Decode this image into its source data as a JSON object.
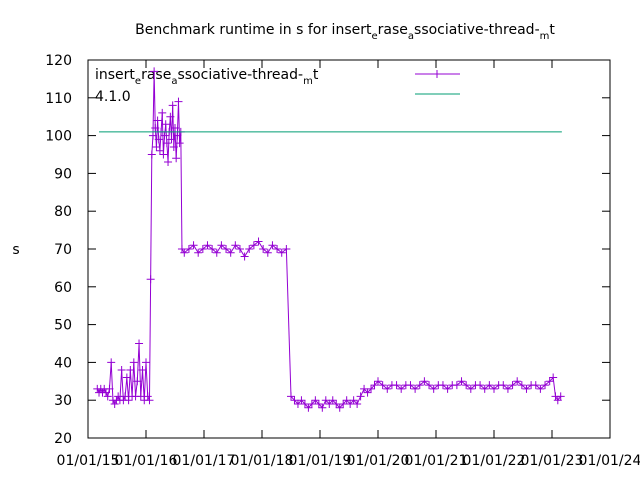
{
  "chart_data": {
    "type": "line",
    "title": [
      "Benchmark runtime in s for insert",
      "e",
      "rase",
      "a",
      "ssociative-thread-",
      "m",
      "t"
    ],
    "label_parts": [
      "insert",
      "e",
      "rase",
      "a",
      "ssociative-thread-",
      "m",
      "t"
    ],
    "version_label": "4.1.0",
    "ylabel": "s",
    "xlim": [
      2015,
      2024
    ],
    "xticks": [
      {
        "value": 2015,
        "label": "01/01/15"
      },
      {
        "value": 2016,
        "label": "01/01/16"
      },
      {
        "value": 2017,
        "label": "01/01/17"
      },
      {
        "value": 2018,
        "label": "01/01/18"
      },
      {
        "value": 2019,
        "label": "01/01/19"
      },
      {
        "value": 2020,
        "label": "01/01/20"
      },
      {
        "value": 2021,
        "label": "01/01/21"
      },
      {
        "value": 2022,
        "label": "01/01/22"
      },
      {
        "value": 2023,
        "label": "01/01/23"
      },
      {
        "value": 2024,
        "label": "01/01/24"
      }
    ],
    "ylim": [
      20,
      120
    ],
    "yticks": [
      20,
      30,
      40,
      50,
      60,
      70,
      80,
      90,
      100,
      110,
      120
    ],
    "series": [
      {
        "color": "#9400d3",
        "marker": "+",
        "x": [
          2015.16,
          2015.19,
          2015.22,
          2015.25,
          2015.28,
          2015.31,
          2015.34,
          2015.37,
          2015.4,
          2015.43,
          2015.46,
          2015.49,
          2015.52,
          2015.55,
          2015.58,
          2015.61,
          2015.64,
          2015.67,
          2015.7,
          2015.73,
          2015.76,
          2015.79,
          2015.82,
          2015.85,
          2015.88,
          2015.91,
          2015.94,
          2015.97,
          2016.0,
          2016.03,
          2016.06,
          2016.08,
          2016.1,
          2016.12,
          2016.14,
          2016.16,
          2016.18,
          2016.2,
          2016.22,
          2016.24,
          2016.26,
          2016.28,
          2016.3,
          2016.32,
          2016.34,
          2016.36,
          2016.38,
          2016.4,
          2016.42,
          2016.44,
          2016.46,
          2016.48,
          2016.5,
          2016.52,
          2016.54,
          2016.56,
          2016.58,
          2016.6,
          2016.62,
          2016.66,
          2016.74,
          2016.82,
          2016.9,
          2016.98,
          2017.06,
          2017.14,
          2017.22,
          2017.3,
          2017.38,
          2017.46,
          2017.54,
          2017.62,
          2017.7,
          2017.78,
          2017.86,
          2017.94,
          2018.02,
          2018.1,
          2018.18,
          2018.26,
          2018.34,
          2018.42,
          2018.5,
          2018.56,
          2018.62,
          2018.68,
          2018.74,
          2018.8,
          2018.86,
          2018.92,
          2018.98,
          2019.04,
          2019.1,
          2019.16,
          2019.22,
          2019.28,
          2019.34,
          2019.4,
          2019.46,
          2019.52,
          2019.58,
          2019.64,
          2019.7,
          2019.76,
          2019.82,
          2019.88,
          2019.94,
          2020.0,
          2020.08,
          2020.16,
          2020.24,
          2020.32,
          2020.4,
          2020.48,
          2020.56,
          2020.64,
          2020.72,
          2020.8,
          2020.88,
          2020.96,
          2021.04,
          2021.12,
          2021.2,
          2021.28,
          2021.36,
          2021.44,
          2021.52,
          2021.6,
          2021.68,
          2021.76,
          2021.84,
          2021.92,
          2022.0,
          2022.08,
          2022.16,
          2022.24,
          2022.32,
          2022.4,
          2022.48,
          2022.56,
          2022.64,
          2022.72,
          2022.8,
          2022.88,
          2022.96,
          2023.02,
          2023.06,
          2023.1,
          2023.15
        ],
        "values": [
          33,
          32,
          33,
          32,
          33,
          32,
          31,
          33,
          40,
          30,
          29,
          30,
          31,
          30,
          38,
          30,
          31,
          36,
          30,
          38,
          31,
          40,
          31,
          35,
          45,
          31,
          38,
          30,
          40,
          31,
          30,
          62,
          95,
          100,
          117,
          102,
          97,
          104,
          99,
          96,
          101,
          106,
          95,
          100,
          103,
          98,
          93,
          101,
          105,
          99,
          108,
          97,
          102,
          94,
          100,
          109,
          98,
          101,
          70,
          69,
          70,
          71,
          69,
          70,
          71,
          70,
          69,
          71,
          70,
          69,
          71,
          70,
          68,
          70,
          71,
          72,
          70,
          69,
          71,
          70,
          69,
          70,
          31,
          30,
          29,
          30,
          29,
          28,
          29,
          30,
          29,
          28,
          30,
          29,
          30,
          29,
          28,
          29,
          30,
          29,
          30,
          29,
          31,
          33,
          32,
          33,
          34,
          35,
          34,
          33,
          34,
          34,
          33,
          34,
          34,
          33,
          34,
          35,
          34,
          33,
          34,
          34,
          33,
          34,
          34,
          35,
          34,
          33,
          34,
          34,
          33,
          34,
          33,
          34,
          34,
          33,
          34,
          35,
          34,
          33,
          34,
          34,
          33,
          34,
          35,
          36,
          31,
          30,
          31
        ]
      },
      {
        "color": "#009e73",
        "x": [
          2015.19,
          2023.17
        ],
        "values": [
          101,
          101
        ]
      }
    ]
  }
}
